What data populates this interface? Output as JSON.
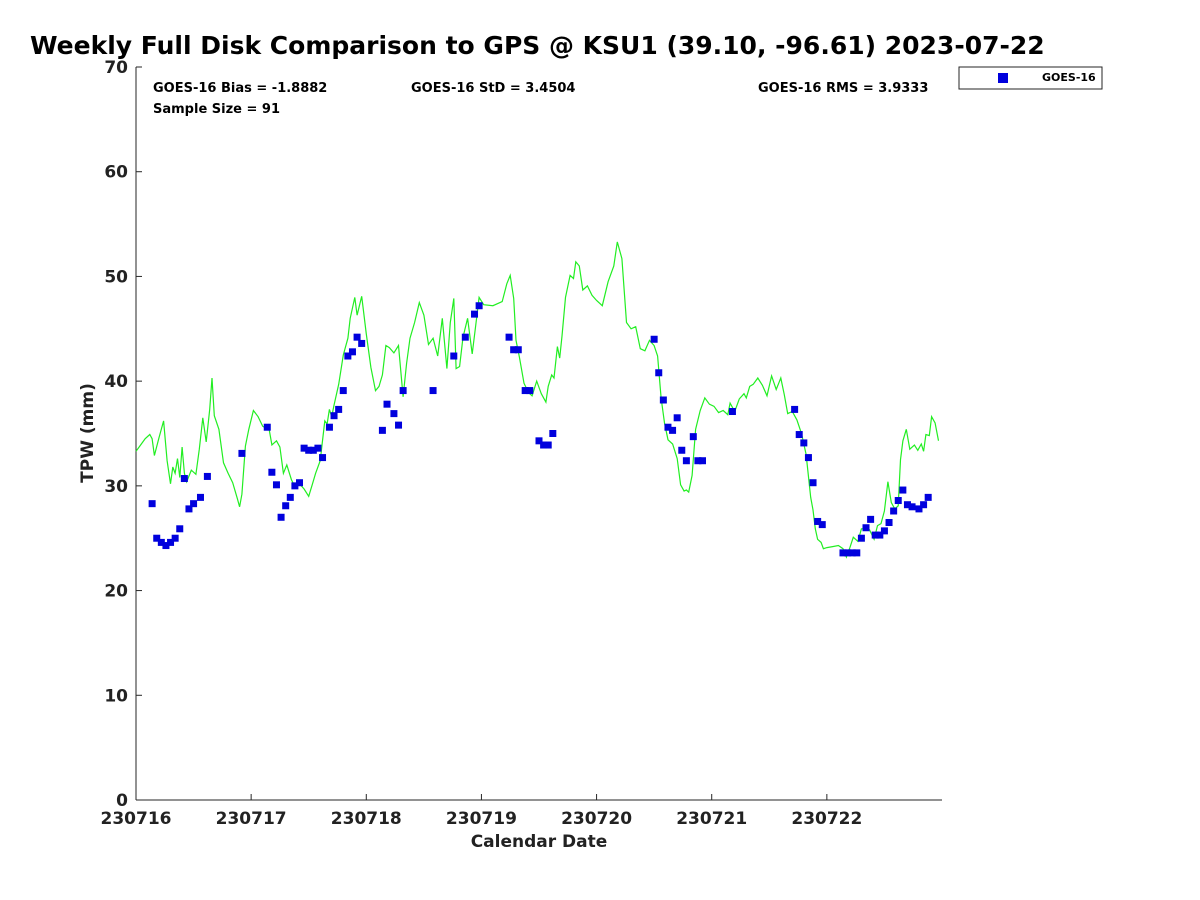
{
  "chart_data": {
    "type": "scatter",
    "title": "Weekly Full Disk Comparison to GPS @ KSU1 (39.10, -96.61) 2023-07-22",
    "xlabel": "Calendar Date",
    "ylabel": "TPW (mm)",
    "xlim": [
      0,
      7
    ],
    "ylim": [
      0,
      70
    ],
    "x_ticks": [
      0,
      1,
      2,
      3,
      4,
      5,
      6
    ],
    "x_tick_labels": [
      "230716",
      "230717",
      "230718",
      "230719",
      "230720",
      "230721",
      "230722"
    ],
    "y_ticks": [
      0,
      10,
      20,
      30,
      40,
      50,
      60,
      70
    ],
    "y_tick_labels": [
      "0",
      "10",
      "20",
      "30",
      "40",
      "50",
      "60",
      "70"
    ],
    "stats": {
      "bias": "GOES-16 Bias = -1.8882",
      "std": "GOES-16 StD = 3.4504",
      "rms": "GOES-16 RMS = 3.9333",
      "sample": "Sample Size = 91"
    },
    "legend": {
      "position": "top-right",
      "label": "GOES-16"
    },
    "series": [
      {
        "name": "GOES-16",
        "kind": "marker",
        "color": "#0000dd",
        "points": [
          [
            0.14,
            28.3
          ],
          [
            0.18,
            25.0
          ],
          [
            0.22,
            24.6
          ],
          [
            0.26,
            24.3
          ],
          [
            0.3,
            24.6
          ],
          [
            0.34,
            25.0
          ],
          [
            0.38,
            25.9
          ],
          [
            0.42,
            30.7
          ],
          [
            0.46,
            27.8
          ],
          [
            0.5,
            28.3
          ],
          [
            0.56,
            28.9
          ],
          [
            0.62,
            30.9
          ],
          [
            0.92,
            33.1
          ],
          [
            1.14,
            35.6
          ],
          [
            1.18,
            31.3
          ],
          [
            1.22,
            30.1
          ],
          [
            1.26,
            27.0
          ],
          [
            1.3,
            28.1
          ],
          [
            1.34,
            28.9
          ],
          [
            1.38,
            30.0
          ],
          [
            1.42,
            30.3
          ],
          [
            1.46,
            33.6
          ],
          [
            1.5,
            33.4
          ],
          [
            1.54,
            33.4
          ],
          [
            1.58,
            33.6
          ],
          [
            1.62,
            32.7
          ],
          [
            1.68,
            35.6
          ],
          [
            1.72,
            36.7
          ],
          [
            1.76,
            37.3
          ],
          [
            1.8,
            39.1
          ],
          [
            1.84,
            42.4
          ],
          [
            1.88,
            42.8
          ],
          [
            1.92,
            44.2
          ],
          [
            1.96,
            43.6
          ],
          [
            2.14,
            35.3
          ],
          [
            2.18,
            37.8
          ],
          [
            2.24,
            36.9
          ],
          [
            2.28,
            35.8
          ],
          [
            2.32,
            39.1
          ],
          [
            2.58,
            39.1
          ],
          [
            2.76,
            42.4
          ],
          [
            2.86,
            44.2
          ],
          [
            2.94,
            46.4
          ],
          [
            2.98,
            47.2
          ],
          [
            3.24,
            44.2
          ],
          [
            3.28,
            43.0
          ],
          [
            3.32,
            43.0
          ],
          [
            3.38,
            39.1
          ],
          [
            3.42,
            39.1
          ],
          [
            3.5,
            34.3
          ],
          [
            3.54,
            33.9
          ],
          [
            3.58,
            33.9
          ],
          [
            3.62,
            35.0
          ],
          [
            4.5,
            44.0
          ],
          [
            4.54,
            40.8
          ],
          [
            4.58,
            38.2
          ],
          [
            4.62,
            35.6
          ],
          [
            4.66,
            35.3
          ],
          [
            4.7,
            36.5
          ],
          [
            4.74,
            33.4
          ],
          [
            4.78,
            32.4
          ],
          [
            4.84,
            34.7
          ],
          [
            4.88,
            32.4
          ],
          [
            4.92,
            32.4
          ],
          [
            5.18,
            37.1
          ],
          [
            5.72,
            37.3
          ],
          [
            5.76,
            34.9
          ],
          [
            5.8,
            34.1
          ],
          [
            5.84,
            32.7
          ],
          [
            5.88,
            30.3
          ],
          [
            5.92,
            26.6
          ],
          [
            5.96,
            26.3
          ],
          [
            6.14,
            23.6
          ],
          [
            6.18,
            23.6
          ],
          [
            6.22,
            23.6
          ],
          [
            6.26,
            23.6
          ],
          [
            6.3,
            25.0
          ],
          [
            6.34,
            26.0
          ],
          [
            6.38,
            26.8
          ],
          [
            6.42,
            25.3
          ],
          [
            6.46,
            25.3
          ],
          [
            6.5,
            25.7
          ],
          [
            6.54,
            26.5
          ],
          [
            6.58,
            27.6
          ],
          [
            6.62,
            28.6
          ],
          [
            6.66,
            29.6
          ],
          [
            6.7,
            28.2
          ],
          [
            6.74,
            28.0
          ],
          [
            6.8,
            27.8
          ],
          [
            6.84,
            28.2
          ],
          [
            6.88,
            28.9
          ]
        ]
      },
      {
        "kind": "line",
        "color": "#22ee22",
        "points": [
          [
            0.0,
            33.3
          ],
          [
            0.04,
            33.9
          ],
          [
            0.08,
            34.5
          ],
          [
            0.12,
            34.9
          ],
          [
            0.14,
            34.5
          ],
          [
            0.16,
            32.9
          ],
          [
            0.2,
            34.6
          ],
          [
            0.24,
            36.2
          ],
          [
            0.27,
            32.4
          ],
          [
            0.3,
            30.2
          ],
          [
            0.32,
            31.8
          ],
          [
            0.34,
            31.2
          ],
          [
            0.36,
            32.6
          ],
          [
            0.38,
            30.8
          ],
          [
            0.4,
            33.7
          ],
          [
            0.42,
            31.2
          ],
          [
            0.44,
            30.4
          ],
          [
            0.48,
            31.5
          ],
          [
            0.52,
            31.1
          ],
          [
            0.55,
            33.5
          ],
          [
            0.58,
            36.5
          ],
          [
            0.61,
            34.2
          ],
          [
            0.64,
            37.3
          ],
          [
            0.66,
            40.3
          ],
          [
            0.68,
            36.7
          ],
          [
            0.72,
            35.4
          ],
          [
            0.76,
            32.2
          ],
          [
            0.8,
            31.2
          ],
          [
            0.84,
            30.3
          ],
          [
            0.88,
            28.8
          ],
          [
            0.9,
            28.0
          ],
          [
            0.92,
            29.2
          ],
          [
            0.95,
            33.8
          ],
          [
            0.98,
            35.4
          ],
          [
            1.02,
            37.2
          ],
          [
            1.06,
            36.6
          ],
          [
            1.1,
            35.7
          ],
          [
            1.13,
            35.5
          ],
          [
            1.15,
            35.8
          ],
          [
            1.18,
            33.9
          ],
          [
            1.22,
            34.3
          ],
          [
            1.25,
            33.7
          ],
          [
            1.28,
            31.2
          ],
          [
            1.31,
            32.0
          ],
          [
            1.35,
            30.6
          ],
          [
            1.38,
            29.9
          ],
          [
            1.42,
            30.2
          ],
          [
            1.46,
            29.7
          ],
          [
            1.5,
            29.0
          ],
          [
            1.53,
            30.1
          ],
          [
            1.56,
            31.2
          ],
          [
            1.6,
            32.4
          ],
          [
            1.64,
            36.2
          ],
          [
            1.66,
            35.9
          ],
          [
            1.68,
            37.3
          ],
          [
            1.7,
            36.6
          ],
          [
            1.72,
            37.7
          ],
          [
            1.76,
            39.7
          ],
          [
            1.8,
            42.5
          ],
          [
            1.84,
            44.1
          ],
          [
            1.86,
            46.0
          ],
          [
            1.9,
            48.0
          ],
          [
            1.92,
            46.3
          ],
          [
            1.96,
            48.1
          ],
          [
            2.0,
            44.5
          ],
          [
            2.04,
            41.3
          ],
          [
            2.08,
            39.1
          ],
          [
            2.11,
            39.5
          ],
          [
            2.14,
            40.6
          ],
          [
            2.17,
            43.4
          ],
          [
            2.2,
            43.2
          ],
          [
            2.24,
            42.7
          ],
          [
            2.28,
            43.4
          ],
          [
            2.32,
            38.5
          ],
          [
            2.35,
            41.7
          ],
          [
            2.38,
            44.1
          ],
          [
            2.42,
            45.6
          ],
          [
            2.46,
            47.5
          ],
          [
            2.5,
            46.3
          ],
          [
            2.54,
            43.5
          ],
          [
            2.58,
            44.1
          ],
          [
            2.62,
            42.4
          ],
          [
            2.66,
            46.0
          ],
          [
            2.7,
            41.2
          ],
          [
            2.73,
            45.6
          ],
          [
            2.76,
            47.9
          ],
          [
            2.78,
            41.2
          ],
          [
            2.81,
            41.4
          ],
          [
            2.84,
            44.2
          ],
          [
            2.88,
            46.0
          ],
          [
            2.92,
            42.6
          ],
          [
            2.95,
            45.3
          ],
          [
            2.98,
            48.0
          ],
          [
            3.02,
            47.3
          ],
          [
            3.1,
            47.2
          ],
          [
            3.18,
            47.6
          ],
          [
            3.22,
            49.3
          ],
          [
            3.25,
            50.1
          ],
          [
            3.28,
            47.9
          ],
          [
            3.3,
            43.9
          ],
          [
            3.33,
            42.3
          ],
          [
            3.37,
            39.8
          ],
          [
            3.41,
            38.9
          ],
          [
            3.44,
            38.6
          ],
          [
            3.48,
            40.0
          ],
          [
            3.5,
            39.4
          ],
          [
            3.52,
            38.8
          ],
          [
            3.56,
            38.0
          ],
          [
            3.58,
            39.5
          ],
          [
            3.61,
            40.6
          ],
          [
            3.63,
            40.3
          ],
          [
            3.66,
            43.3
          ],
          [
            3.68,
            42.2
          ],
          [
            3.7,
            44.3
          ],
          [
            3.73,
            48.0
          ],
          [
            3.77,
            50.1
          ],
          [
            3.8,
            49.8
          ],
          [
            3.82,
            51.4
          ],
          [
            3.85,
            51.0
          ],
          [
            3.88,
            48.7
          ],
          [
            3.92,
            49.1
          ],
          [
            3.96,
            48.2
          ],
          [
            4.0,
            47.7
          ],
          [
            4.05,
            47.2
          ],
          [
            4.1,
            49.5
          ],
          [
            4.15,
            51.0
          ],
          [
            4.18,
            53.3
          ],
          [
            4.22,
            51.7
          ],
          [
            4.26,
            45.6
          ],
          [
            4.3,
            45.0
          ],
          [
            4.34,
            45.2
          ],
          [
            4.38,
            43.1
          ],
          [
            4.42,
            42.9
          ],
          [
            4.46,
            43.9
          ],
          [
            4.5,
            43.4
          ],
          [
            4.53,
            42.4
          ],
          [
            4.56,
            38.4
          ],
          [
            4.59,
            36.0
          ],
          [
            4.62,
            34.4
          ],
          [
            4.66,
            34.0
          ],
          [
            4.7,
            32.6
          ],
          [
            4.73,
            30.1
          ],
          [
            4.76,
            29.5
          ],
          [
            4.78,
            29.6
          ],
          [
            4.8,
            29.4
          ],
          [
            4.83,
            31.0
          ],
          [
            4.86,
            35.4
          ],
          [
            4.9,
            37.2
          ],
          [
            4.94,
            38.4
          ],
          [
            4.98,
            37.8
          ],
          [
            5.02,
            37.6
          ],
          [
            5.06,
            37.0
          ],
          [
            5.1,
            37.2
          ],
          [
            5.14,
            36.8
          ],
          [
            5.16,
            37.9
          ],
          [
            5.2,
            37.1
          ],
          [
            5.24,
            38.3
          ],
          [
            5.28,
            38.8
          ],
          [
            5.3,
            38.4
          ],
          [
            5.33,
            39.5
          ],
          [
            5.36,
            39.7
          ],
          [
            5.4,
            40.3
          ],
          [
            5.44,
            39.6
          ],
          [
            5.48,
            38.6
          ],
          [
            5.52,
            40.5
          ],
          [
            5.56,
            39.2
          ],
          [
            5.6,
            40.3
          ],
          [
            5.63,
            38.7
          ],
          [
            5.66,
            36.9
          ],
          [
            5.7,
            37.1
          ],
          [
            5.74,
            36.3
          ],
          [
            5.78,
            35.0
          ],
          [
            5.82,
            33.0
          ],
          [
            5.86,
            28.9
          ],
          [
            5.88,
            27.7
          ],
          [
            5.9,
            25.9
          ],
          [
            5.92,
            24.9
          ],
          [
            5.95,
            24.6
          ],
          [
            5.97,
            24.0
          ],
          [
            6.0,
            24.1
          ],
          [
            6.05,
            24.2
          ],
          [
            6.1,
            24.3
          ],
          [
            6.14,
            24.0
          ],
          [
            6.17,
            23.2
          ],
          [
            6.2,
            24.1
          ],
          [
            6.23,
            25.1
          ],
          [
            6.27,
            24.7
          ],
          [
            6.3,
            25.9
          ],
          [
            6.34,
            25.9
          ],
          [
            6.37,
            25.8
          ],
          [
            6.41,
            24.9
          ],
          [
            6.44,
            26.2
          ],
          [
            6.47,
            26.4
          ],
          [
            6.5,
            27.6
          ],
          [
            6.53,
            30.4
          ],
          [
            6.56,
            28.4
          ],
          [
            6.59,
            27.8
          ],
          [
            6.62,
            28.1
          ],
          [
            6.64,
            32.5
          ],
          [
            6.66,
            34.3
          ],
          [
            6.69,
            35.4
          ],
          [
            6.72,
            33.5
          ],
          [
            6.76,
            33.9
          ],
          [
            6.79,
            33.4
          ],
          [
            6.82,
            34.0
          ],
          [
            6.84,
            33.3
          ],
          [
            6.86,
            34.9
          ],
          [
            6.89,
            34.8
          ],
          [
            6.91,
            36.6
          ],
          [
            6.94,
            36.0
          ],
          [
            6.97,
            34.3
          ]
        ]
      }
    ]
  }
}
